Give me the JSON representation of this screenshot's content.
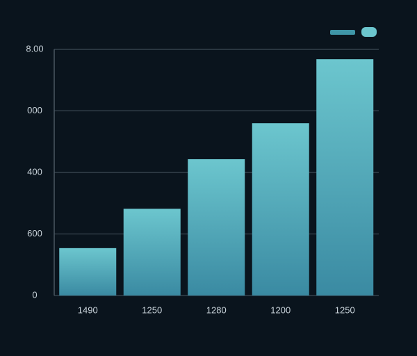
{
  "chart_data": {
    "type": "bar",
    "categories": [
      "1490",
      "1250",
      "1280",
      "1200",
      "1250"
    ],
    "values": [
      154,
      282,
      443,
      560,
      768
    ],
    "color": "#6cc6ce",
    "ylim": [
      0,
      800
    ],
    "yticks": [
      0,
      {
        "value": 200,
        "label": "600"
      },
      400,
      {
        "value": 600,
        "label": "000"
      },
      {
        "value": 800,
        "label": "8.00"
      }
    ],
    "grid": true
  }
}
